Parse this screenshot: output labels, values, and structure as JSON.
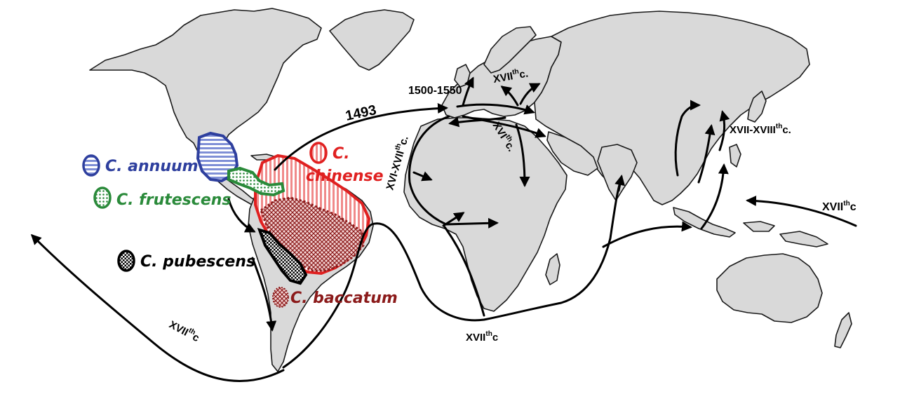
{
  "species": [
    {
      "name": "C. annuum",
      "color": "#2e3f9e"
    },
    {
      "name": "C. frutescens",
      "color": "#2a8a3a"
    },
    {
      "name": "C. pubescens",
      "color": "#000000"
    },
    {
      "name": "C. baccatum",
      "color": "#8b1a1a"
    },
    {
      "name": "C. chinense_line1",
      "color": "#e02020"
    }
  ],
  "chinense": {
    "line1": "C.",
    "line2": "chinense",
    "color": "#e02020"
  },
  "routes": {
    "r1493": "1493",
    "r1500": "1500-1550",
    "xvii_europe": "XVII",
    "xvi_europe": "XVI",
    "xvi_xvii": "XVI-XVII",
    "xvii_xviii": "XVII-XVIII",
    "xvii_africa": "XVII",
    "xvii_pacific_w": "XVII",
    "xvii_pacific_e": "XVII",
    "th": "th",
    "c": "c",
    "c_dot": "c."
  }
}
